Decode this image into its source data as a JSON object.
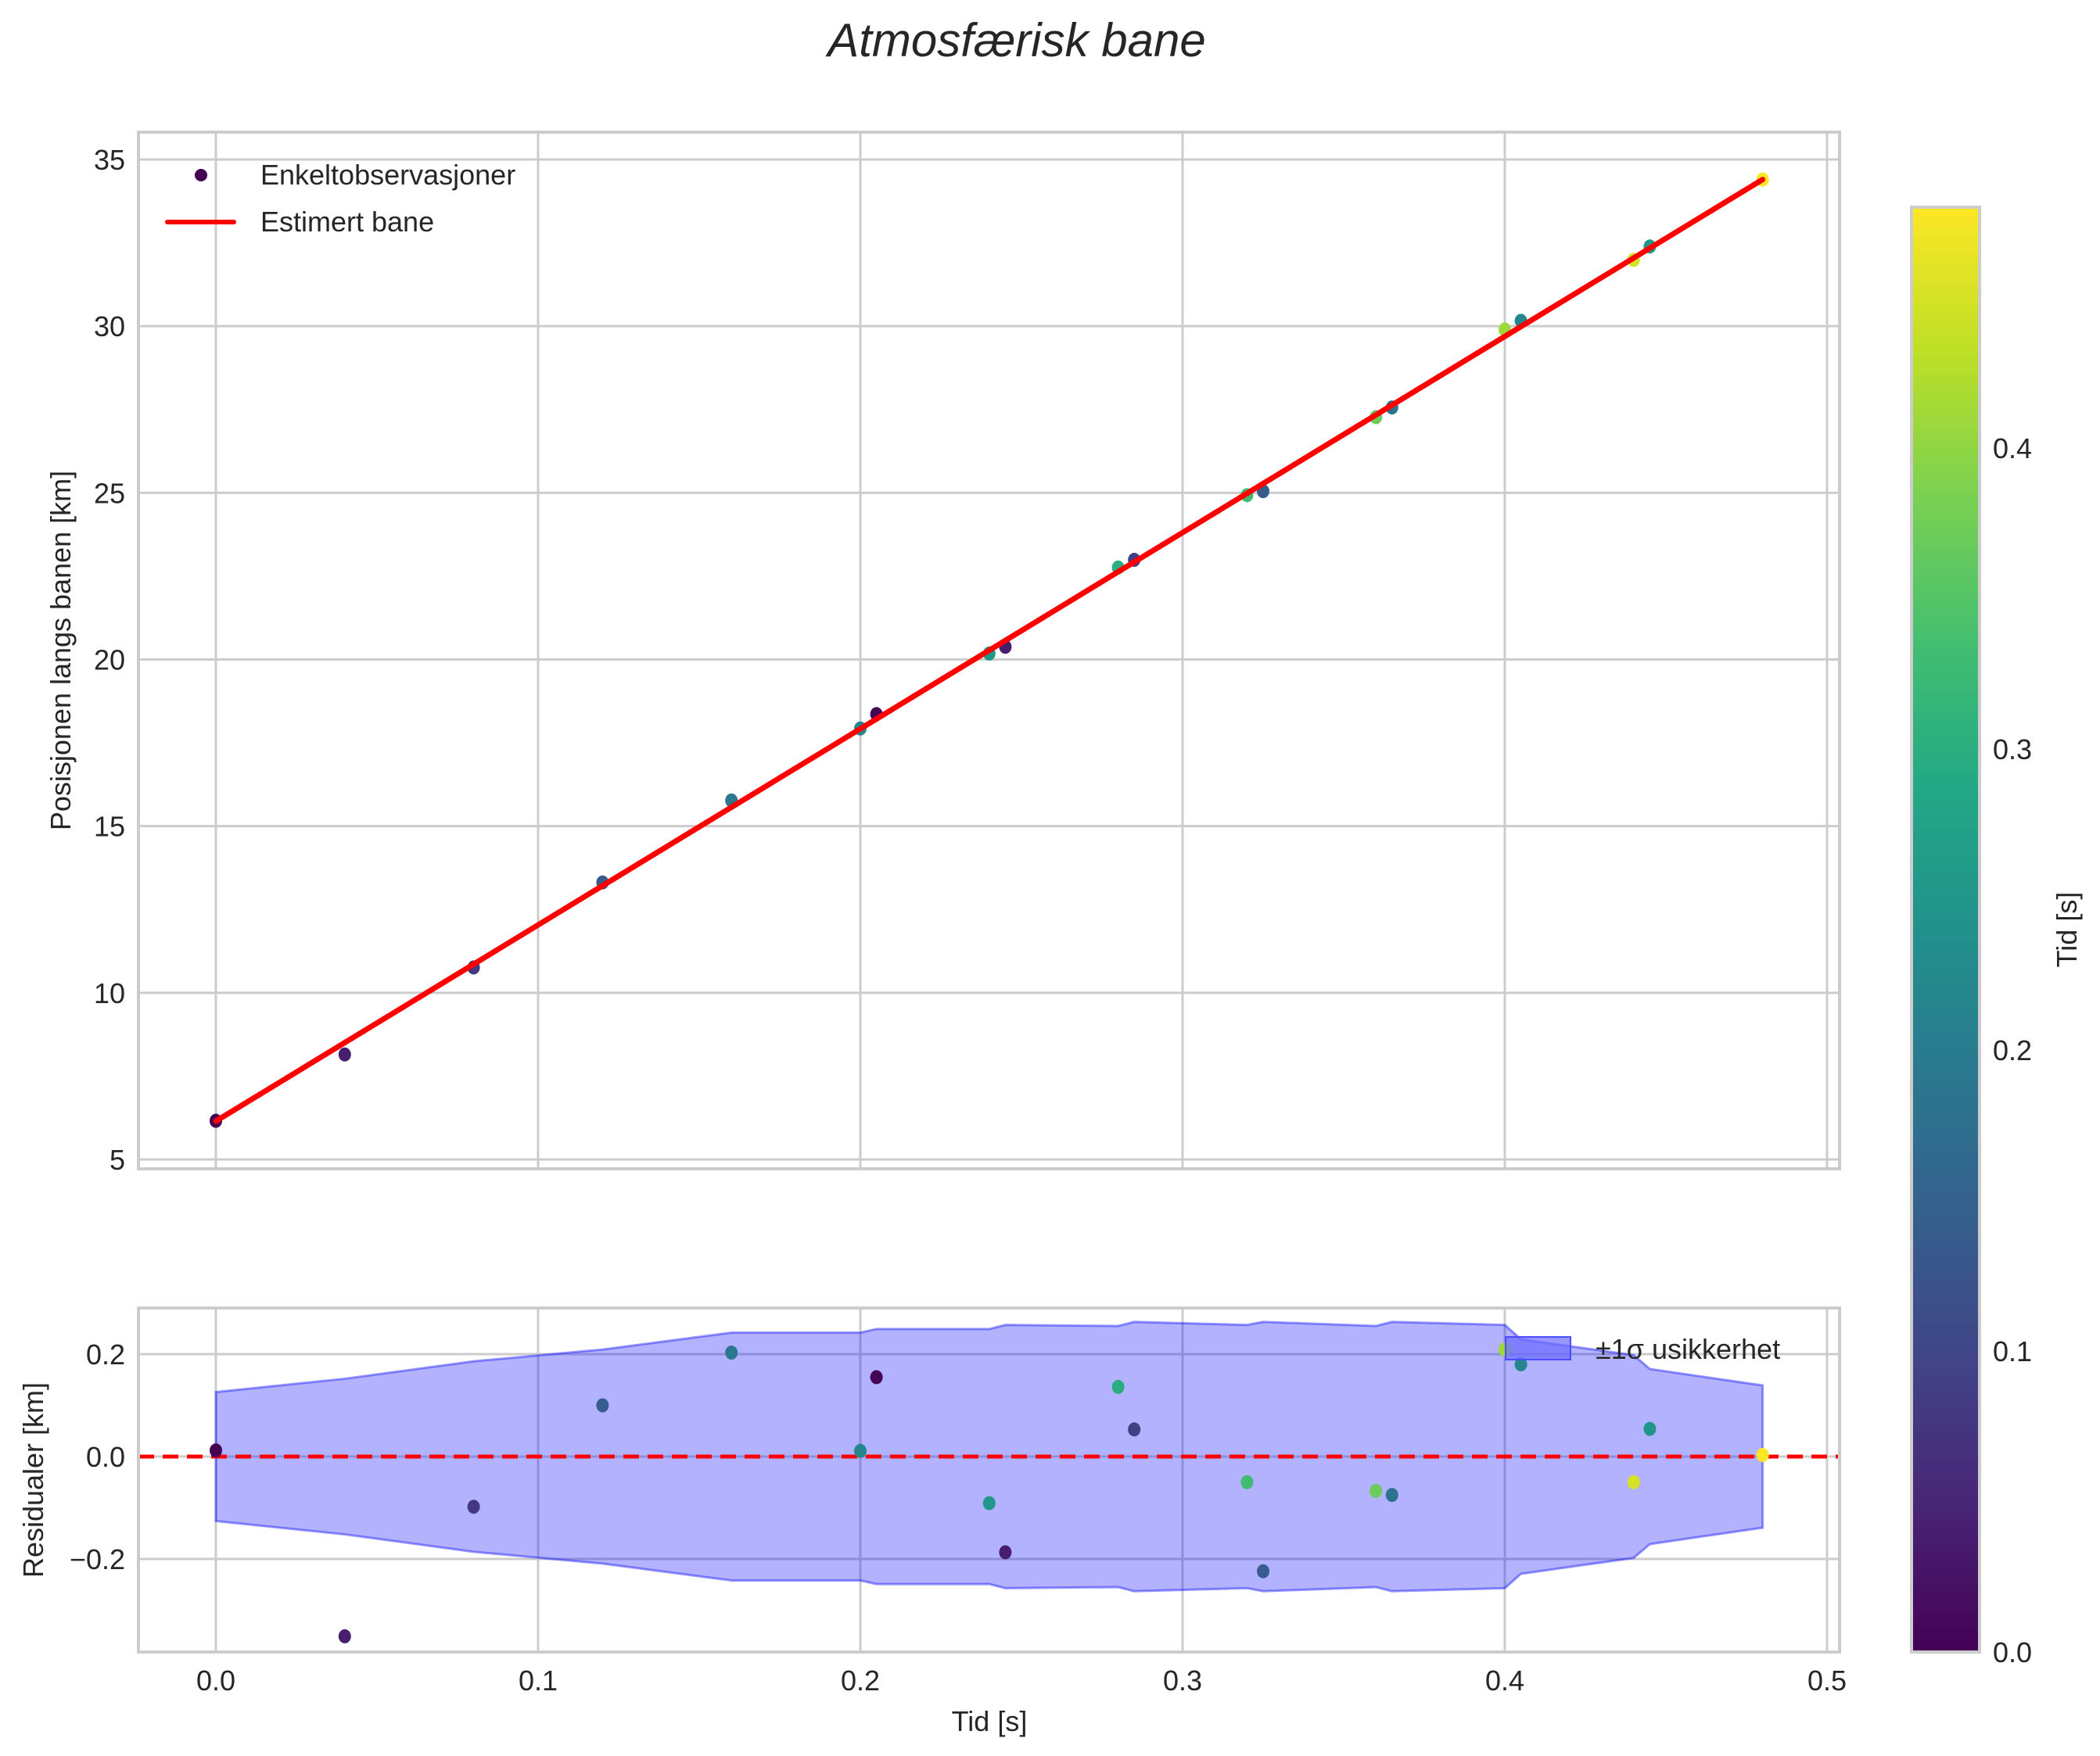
{
  "chart_data": [
    {
      "type": "scatter",
      "title": "Atmosfærisk bane",
      "panel": "top",
      "xlabel": "",
      "ylabel": "Posisjonen langs banen [km]",
      "xlim": [
        -0.024,
        0.504
      ],
      "ylim": [
        4.7,
        35.8
      ],
      "xticks": [
        0.0,
        0.1,
        0.2,
        0.3,
        0.4,
        0.5
      ],
      "yticks": [
        5,
        10,
        15,
        20,
        25,
        30,
        35
      ],
      "grid": true,
      "legend_position": "upper left",
      "series": [
        {
          "name": "Enkeltobservasjoner",
          "kind": "scatter",
          "colormap": "viridis",
          "x": [
            0.0,
            0.04,
            0.08,
            0.12,
            0.16,
            0.2,
            0.205,
            0.24,
            0.245,
            0.28,
            0.285,
            0.32,
            0.325,
            0.36,
            0.365,
            0.4,
            0.405,
            0.44,
            0.445,
            0.48
          ],
          "y": [
            6.16,
            8.15,
            10.76,
            13.31,
            15.77,
            17.93,
            18.36,
            20.18,
            20.38,
            22.76,
            22.99,
            24.93,
            25.05,
            27.27,
            27.56,
            29.9,
            30.16,
            31.99,
            32.39,
            34.4
          ],
          "c": [
            0.0,
            0.04,
            0.08,
            0.14,
            0.19,
            0.22,
            0.005,
            0.25,
            0.04,
            0.3,
            0.09,
            0.33,
            0.14,
            0.37,
            0.18,
            0.41,
            0.22,
            0.45,
            0.25,
            0.48
          ]
        },
        {
          "name": "Estimert bane",
          "kind": "line",
          "color": "#ff0000",
          "x": [
            0.0,
            0.48
          ],
          "y": [
            6.15,
            34.4
          ]
        }
      ]
    },
    {
      "type": "scatter",
      "panel": "bottom",
      "xlabel": "Tid [s]",
      "ylabel": "Residualer [km]",
      "xlim": [
        -0.024,
        0.504
      ],
      "ylim": [
        -0.38,
        0.29
      ],
      "xticks": [
        0.0,
        0.1,
        0.2,
        0.3,
        0.4,
        0.5
      ],
      "yticks": [
        -0.2,
        0.0,
        0.2
      ],
      "grid": true,
      "legend_position": "upper right",
      "series": [
        {
          "name": "Residualer",
          "kind": "scatter",
          "colormap": "viridis",
          "x": [
            0.0,
            0.04,
            0.08,
            0.12,
            0.16,
            0.2,
            0.205,
            0.24,
            0.245,
            0.28,
            0.285,
            0.32,
            0.325,
            0.36,
            0.365,
            0.4,
            0.405,
            0.44,
            0.445,
            0.48
          ],
          "y": [
            0.012,
            -0.351,
            -0.098,
            0.1,
            0.203,
            0.011,
            0.155,
            -0.091,
            -0.187,
            0.136,
            0.053,
            -0.05,
            -0.224,
            -0.067,
            -0.075,
            0.209,
            0.18,
            -0.05,
            0.054,
            0.003
          ],
          "c": [
            0.0,
            0.04,
            0.08,
            0.14,
            0.19,
            0.22,
            0.005,
            0.25,
            0.04,
            0.3,
            0.09,
            0.33,
            0.14,
            0.37,
            0.18,
            0.41,
            0.22,
            0.45,
            0.25,
            0.48
          ]
        },
        {
          "name": "±1σ usikkerhet",
          "kind": "fill_between",
          "color": "#0000ff",
          "alpha": 0.3,
          "x": [
            0.0,
            0.04,
            0.08,
            0.12,
            0.16,
            0.2,
            0.205,
            0.24,
            0.245,
            0.28,
            0.285,
            0.32,
            0.325,
            0.36,
            0.365,
            0.4,
            0.405,
            0.44,
            0.445,
            0.48
          ],
          "sigma": [
            0.126,
            0.152,
            0.186,
            0.209,
            0.242,
            0.242,
            0.249,
            0.249,
            0.257,
            0.255,
            0.263,
            0.257,
            0.263,
            0.255,
            0.263,
            0.257,
            0.229,
            0.198,
            0.171,
            0.139
          ]
        },
        {
          "name": "zero-line",
          "kind": "hline",
          "y": 0.0,
          "color": "#ff0000",
          "style": "dashed"
        }
      ]
    },
    {
      "type": "colorbar",
      "label": "Tid [s]",
      "colormap": "viridis",
      "range": [
        0.0,
        0.48
      ],
      "ticks": [
        0.0,
        0.1,
        0.2,
        0.3,
        0.4
      ]
    }
  ],
  "labels": {
    "title": "Atmosfærisk bane",
    "top_ylabel": "Posisjonen langs banen [km]",
    "bottom_ylabel": "Residualer [km]",
    "xlabel": "Tid [s]",
    "colorbar_label": "Tid [s]",
    "legend_obs": "Enkeltobservasjoner",
    "legend_fit": "Estimert bane",
    "legend_sigma": "±1σ usikkerhet"
  },
  "colors": {
    "fit_line": "#ff0000",
    "band_fill": "#b2b2ff",
    "band_edge": "#6666ff",
    "grid": "#cccccc",
    "text": "#262626"
  }
}
